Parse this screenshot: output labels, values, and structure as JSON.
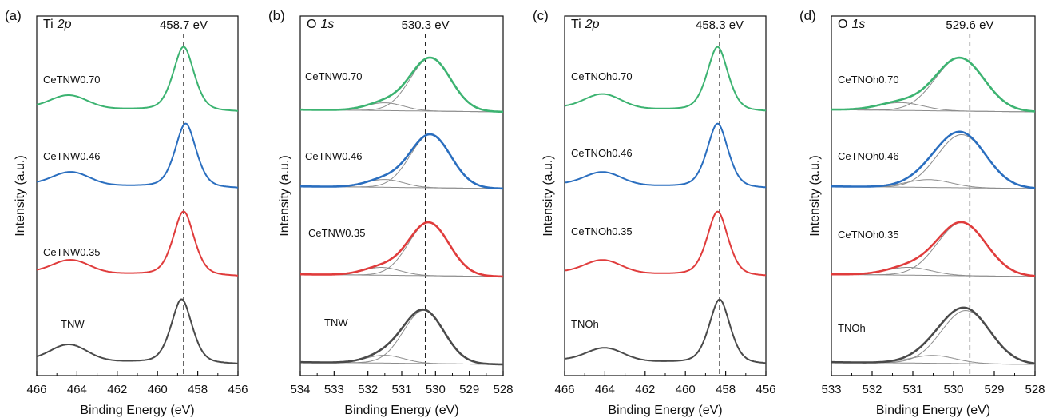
{
  "figure": {
    "ylabel": "Intensity (a.u.)",
    "xlabel": "Binding Energy (eV)"
  },
  "colors": {
    "line_070": "#3cb371",
    "line_046": "#2a6ebf",
    "line_035": "#e03c3c",
    "line_ref": "#4a4a4a",
    "fit": "#8c8c8c",
    "axis": "#111111"
  },
  "chart_data": [
    {
      "type": "line",
      "panel": "(a)",
      "element": "Ti",
      "orbital": "2p",
      "peak_label": "458.7 eV",
      "peak_position": 458.7,
      "xlabel": "Binding Energy (eV)",
      "ylabel": "Intensity (a.u.)",
      "xlim": [
        466,
        456
      ],
      "x_reversed": true,
      "xticks": [
        "466",
        "464",
        "462",
        "460",
        "458",
        "456"
      ],
      "grid": false,
      "series": [
        {
          "name": "CeTNW0.70",
          "color": "#3cb371",
          "main_peak": 458.7,
          "satellite": 464.4,
          "main_height": 1.0,
          "satellite_height": 0.2
        },
        {
          "name": "CeTNW0.46",
          "color": "#2a6ebf",
          "main_peak": 458.6,
          "satellite": 464.3,
          "main_height": 1.0,
          "satellite_height": 0.2
        },
        {
          "name": "CeTNW0.35",
          "color": "#e03c3c",
          "main_peak": 458.7,
          "satellite": 464.3,
          "main_height": 1.0,
          "satellite_height": 0.2
        },
        {
          "name": "TNW",
          "color": "#4a4a4a",
          "main_peak": 458.8,
          "satellite": 464.4,
          "main_height": 1.0,
          "satellite_height": 0.25
        }
      ]
    },
    {
      "type": "line",
      "panel": "(b)",
      "element": "O",
      "orbital": "1s",
      "peak_label": "530.3 eV",
      "peak_position": 530.3,
      "xlabel": "Binding Energy (eV)",
      "ylabel": "Intensity (a.u.)",
      "xlim": [
        534,
        528
      ],
      "x_reversed": true,
      "xticks": [
        "534",
        "533",
        "532",
        "531",
        "530",
        "529",
        "528"
      ],
      "grid": false,
      "series": [
        {
          "name": "CeTNW0.70",
          "color": "#3cb371",
          "main_peak": 530.15,
          "shoulder": 531.5
        },
        {
          "name": "CeTNW0.46",
          "color": "#2a6ebf",
          "main_peak": 530.15,
          "shoulder": 531.5
        },
        {
          "name": "CeTNW0.35",
          "color": "#e03c3c",
          "main_peak": 530.2,
          "shoulder": 531.6
        },
        {
          "name": "TNW",
          "color": "#4a4a4a",
          "main_peak": 530.35,
          "shoulder": 531.5
        }
      ]
    },
    {
      "type": "line",
      "panel": "(c)",
      "element": "Ti",
      "orbital": "2p",
      "peak_label": "458.3 eV",
      "peak_position": 458.3,
      "xlabel": "Binding Energy (eV)",
      "ylabel": "Intensity (a.u.)",
      "xlim": [
        466,
        456
      ],
      "x_reversed": true,
      "xticks": [
        "466",
        "464",
        "462",
        "460",
        "458",
        "456"
      ],
      "grid": false,
      "series": [
        {
          "name": "CeTNOh0.70",
          "color": "#3cb371",
          "main_peak": 458.4,
          "satellite": 464.1,
          "main_height": 1.0,
          "satellite_height": 0.22
        },
        {
          "name": "CeTNOh0.46",
          "color": "#2a6ebf",
          "main_peak": 458.4,
          "satellite": 464.1,
          "main_height": 1.0,
          "satellite_height": 0.2
        },
        {
          "name": "CeTNOh0.35",
          "color": "#e03c3c",
          "main_peak": 458.4,
          "satellite": 464.1,
          "main_height": 1.0,
          "satellite_height": 0.2
        },
        {
          "name": "TNOh",
          "color": "#4a4a4a",
          "main_peak": 458.3,
          "satellite": 464.0,
          "main_height": 1.0,
          "satellite_height": 0.2
        }
      ]
    },
    {
      "type": "line",
      "panel": "(d)",
      "element": "O",
      "orbital": "1s",
      "peak_label": "529.6 eV",
      "peak_position": 529.6,
      "xlabel": "Binding Energy (eV)",
      "ylabel": "Intensity (a.u.)",
      "xlim": [
        533,
        528
      ],
      "x_reversed": true,
      "xticks": [
        "533",
        "532",
        "531",
        "530",
        "529",
        "528"
      ],
      "grid": false,
      "series": [
        {
          "name": "CeTNOh0.70",
          "color": "#3cb371",
          "main_peak": 529.85,
          "shoulder": 531.3
        },
        {
          "name": "CeTNOh0.46",
          "color": "#2a6ebf",
          "main_peak": 529.8,
          "shoulder": 530.6
        },
        {
          "name": "CeTNOh0.35",
          "color": "#e03c3c",
          "main_peak": 529.8,
          "shoulder": 531.1
        },
        {
          "name": "TNOh",
          "color": "#4a4a4a",
          "main_peak": 529.7,
          "shoulder": 530.5
        }
      ]
    }
  ]
}
